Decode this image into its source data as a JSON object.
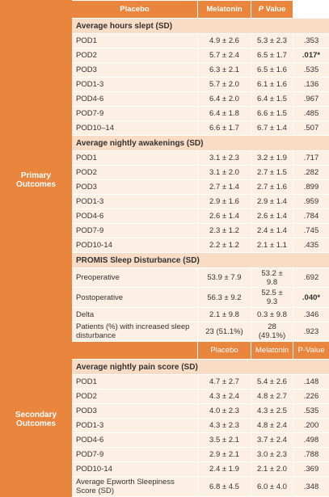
{
  "header": {
    "columns": [
      "Placebo",
      "Melatonin",
      "P Value"
    ]
  },
  "sections": [
    {
      "label": "Primary Outcomes",
      "groups": [
        {
          "title": "Average hours slept (SD)",
          "rows": [
            [
              "POD1",
              "4.9 ± 2.6",
              "5.3 ± 2.3",
              ".353"
            ],
            [
              "POD2",
              "5.7 ± 2.4",
              "6.5 ± 1.7",
              ".017*"
            ],
            [
              "POD3",
              "6.3 ± 2.1",
              "6.5 ± 1.6",
              ".535"
            ],
            [
              "POD1-3",
              "5.7 ± 2.0",
              "6.1 ± 1.6",
              ".136"
            ],
            [
              "POD4-6",
              "6.4 ± 2.0",
              "6.4 ± 1.5",
              ".967"
            ],
            [
              "POD7-9",
              "6.4 ± 1.8",
              "6.6 ± 1.5",
              ".485"
            ],
            [
              "POD10–14",
              "6.6 ± 1.7",
              "6.7 ± 1.4",
              ".507"
            ]
          ]
        },
        {
          "title": "Average nightly awakenings (SD)",
          "rows": [
            [
              "POD1",
              "3.1 ± 2.3",
              "3.2 ± 1.9",
              ".717"
            ],
            [
              "POD2",
              "3.1 ± 2.0",
              "2.7 ± 1.5",
              ".282"
            ],
            [
              "POD3",
              "2.7 ± 1.4",
              "2.7 ± 1.6",
              ".899"
            ],
            [
              "POD1-3",
              "2.9 ± 1.6",
              "2.9 ± 1.4",
              ".959"
            ],
            [
              "POD4-6",
              "2.6 ± 1.4",
              "2.6 ± 1.4",
              ".784"
            ],
            [
              "POD7-9",
              "2.3 ± 1.2",
              "2.4 ± 1.4",
              ".745"
            ],
            [
              "POD10-14",
              "2.2 ± 1.2",
              "2.1 ± 1.1",
              ".435"
            ]
          ]
        },
        {
          "title": "PROMIS Sleep Disturbance (SD)",
          "rows": [
            [
              "Preoperative",
              "53.9 ± 7.9",
              "53.2 ± 9.8",
              ".692"
            ],
            [
              "Postoperative",
              "56.3 ± 9.2",
              "52.5 ± 9.3",
              ".040*"
            ],
            [
              "Delta",
              "2.1 ± 9.8",
              "0.3 ± 9.8",
              ".346"
            ],
            [
              "Patients (%) with increased sleep disturbance",
              "23 (51.1%)",
              "28 (49.1%)",
              ".923"
            ]
          ]
        }
      ]
    },
    {
      "label": "Secondary Outcomes",
      "columns": [
        "Placebo",
        "Melatonin",
        "P-Value"
      ],
      "groups": [
        {
          "title": "Average nightly pain score (SD)",
          "rows": [
            [
              "POD1",
              "4.7 ± 2.7",
              "5.4 ± 2.6",
              ".148"
            ],
            [
              "POD2",
              "4.3 ± 2.4",
              "4.8 ± 2.7",
              ".226"
            ],
            [
              "POD3",
              "4.0 ± 2.3",
              "4.3 ± 2.5",
              ".535"
            ],
            [
              "POD1-3",
              "4.3 ± 2.3",
              "4.8 ± 2.4",
              ".200"
            ],
            [
              "POD4-6",
              "3.5 ± 2.1",
              "3.7 ± 2.4",
              ".498"
            ],
            [
              "POD7-9",
              "2.9 ± 2.1",
              "3.0 ± 2.3",
              ".788"
            ],
            [
              "POD10-14",
              "2.4 ± 1.9",
              "2.1 ± 2.0",
              ".369"
            ],
            [
              "Average Epworth Sleepiness Score (SD)",
              "6.8 ± 4.5",
              "6.0 ± 4.0",
              ".348"
            ]
          ]
        }
      ]
    }
  ]
}
